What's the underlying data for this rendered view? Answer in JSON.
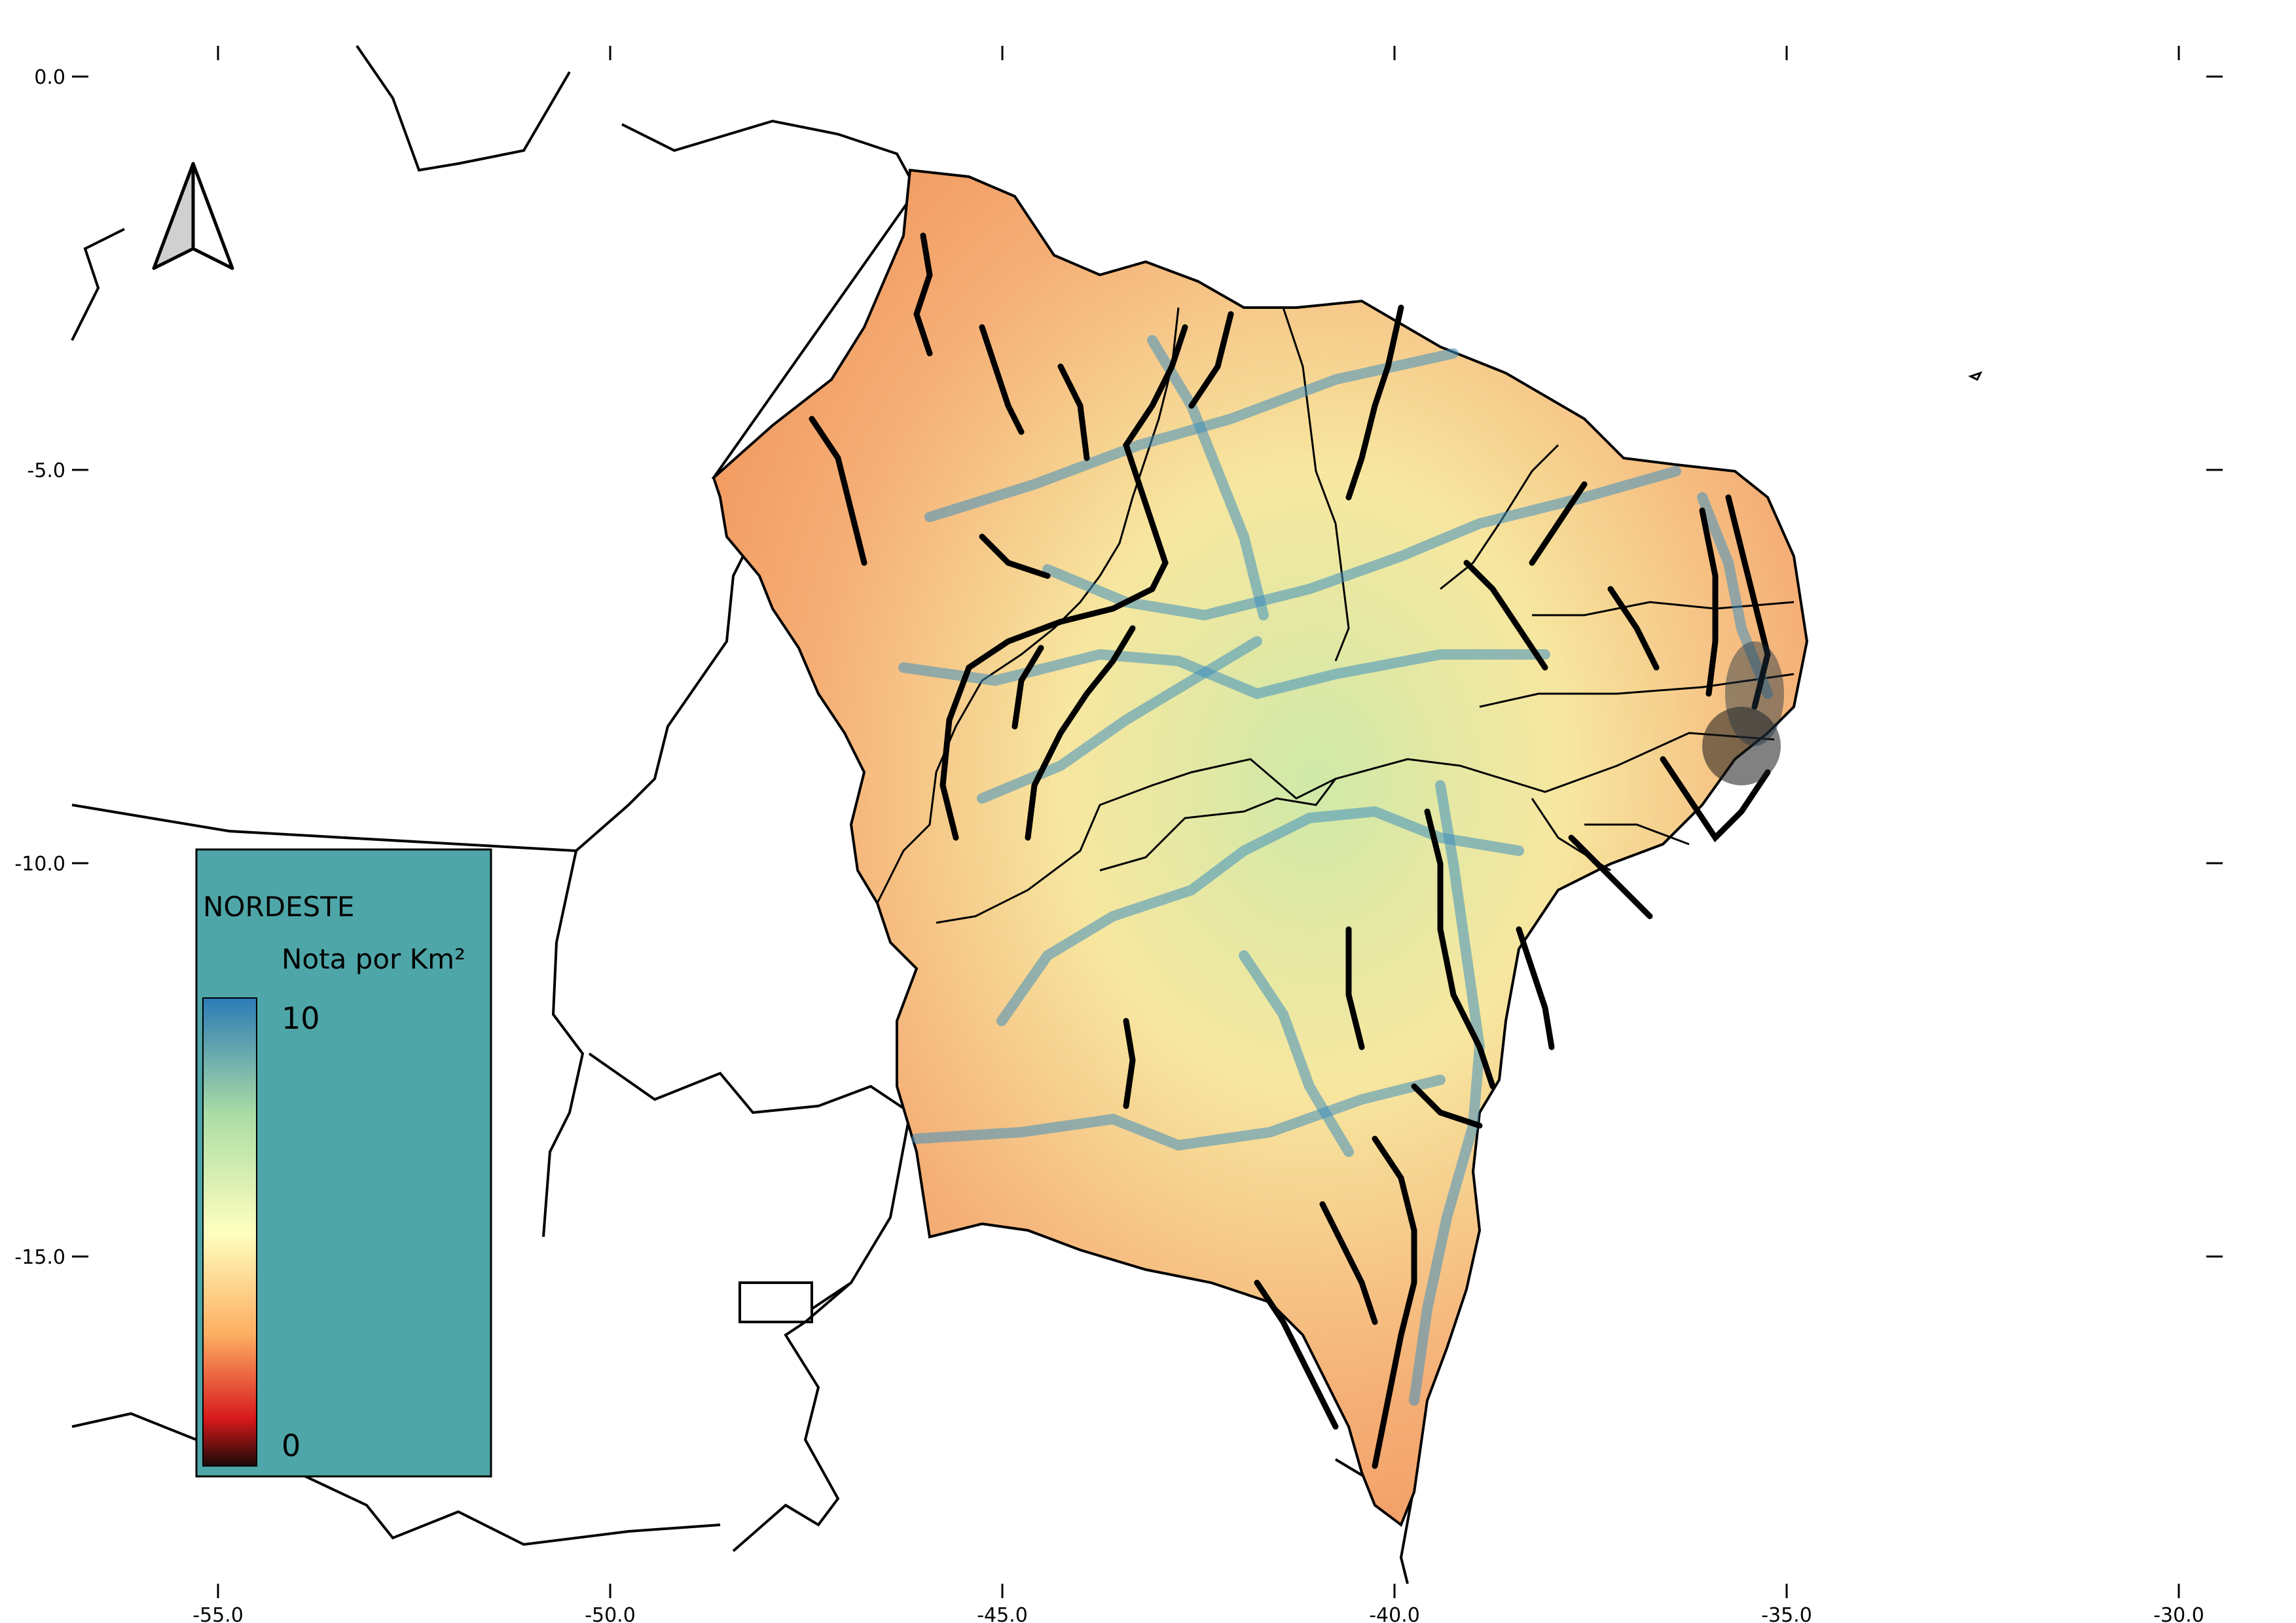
{
  "map": {
    "x_axis": {
      "ticks": [
        -55.0,
        -50.0,
        -45.0,
        -40.0,
        -35.0,
        -30.0
      ],
      "labels": [
        "-55.0",
        "-50.0",
        "-45.0",
        "-40.0",
        "-35.0",
        "-30.0"
      ]
    },
    "y_axis": {
      "ticks": [
        0.0,
        -5.0,
        -10.0,
        -15.0
      ],
      "labels": [
        "0.0",
        "-5.0",
        "-10.0",
        "-15.0"
      ]
    },
    "north_arrow": "north-arrow-icon",
    "legend": {
      "title": "NORDESTE",
      "subtitle": "Nota por Km²",
      "max_label": "10",
      "min_label": "0",
      "background": "#4ea6a8",
      "ramp": [
        "#2c7bb6",
        "#abdda4",
        "#ffffbf",
        "#fdae61",
        "#d7191c",
        "#1a0a05"
      ]
    },
    "colors": {
      "high": "#2c7bb6",
      "mid": "#ffffbf",
      "low": "#f39a5e",
      "roads": "#000000"
    }
  }
}
